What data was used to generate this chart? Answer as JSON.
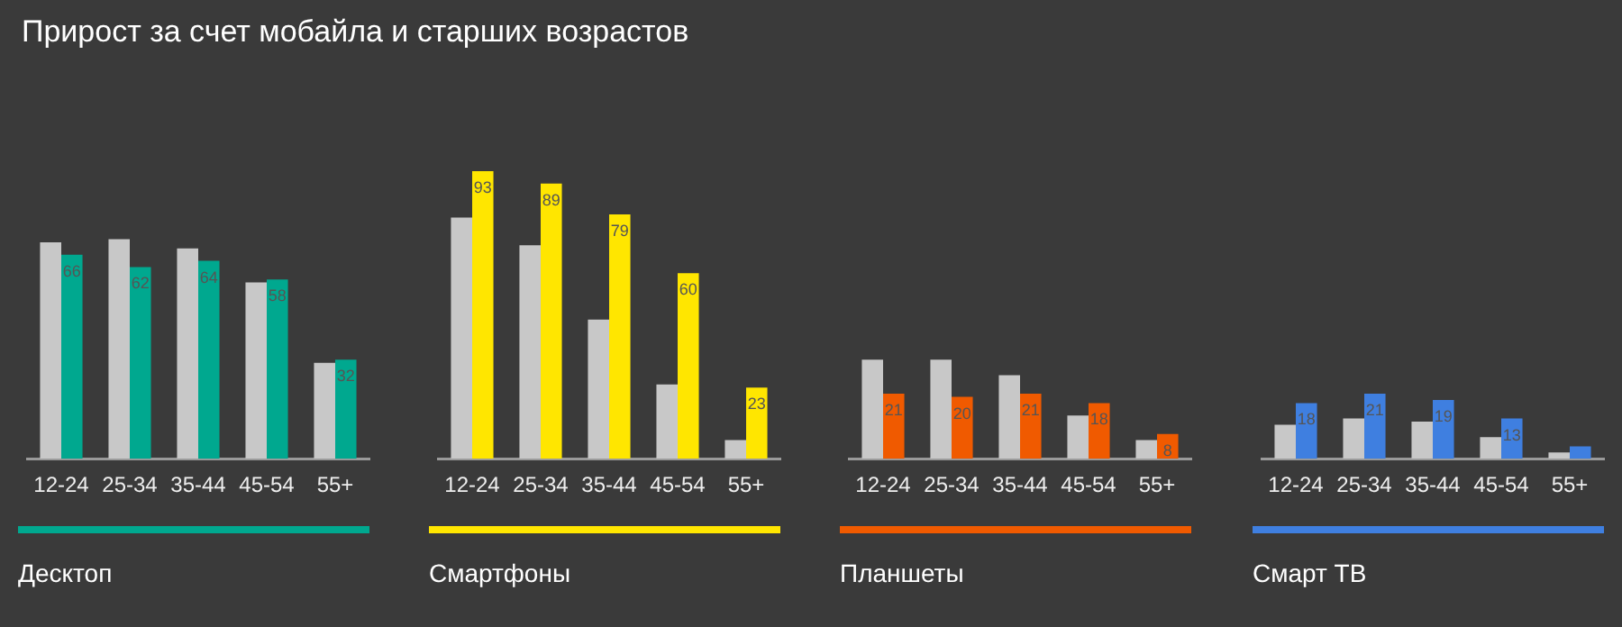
{
  "chart_data": [
    {
      "type": "bar",
      "title": "Прирост за счет мобайла и старших возрастов",
      "categories": [
        "12-24",
        "25-34",
        "35-44",
        "45-54",
        "55+"
      ],
      "legend": "bottom",
      "series": [
        {
          "color": "#c8c8c8",
          "values": [
            70,
            71,
            68,
            57,
            31
          ]
        },
        {
          "name": "Десктоп",
          "color": "#00a88f",
          "values": [
            66,
            62,
            64,
            58,
            32
          ],
          "value_labels": [
            "66",
            "62",
            "64",
            "58",
            "32"
          ]
        }
      ]
    },
    {
      "type": "bar",
      "categories": [
        "12-24",
        "25-34",
        "35-44",
        "45-54",
        "55+"
      ],
      "legend": "bottom",
      "series": [
        {
          "color": "#c8c8c8",
          "values": [
            78,
            69,
            45,
            24,
            6
          ]
        },
        {
          "name": "Смартфоны",
          "color": "#ffe600",
          "values": [
            93,
            89,
            79,
            60,
            23
          ],
          "value_labels": [
            "93",
            "89",
            "79",
            "60",
            "23"
          ]
        }
      ]
    },
    {
      "type": "bar",
      "categories": [
        "12-24",
        "25-34",
        "35-44",
        "45-54",
        "55+"
      ],
      "legend": "bottom",
      "series": [
        {
          "color": "#c8c8c8",
          "values": [
            32,
            32,
            27,
            14,
            6
          ]
        },
        {
          "name": "Планшеты",
          "color": "#f05a00",
          "values": [
            21,
            20,
            21,
            18,
            8
          ],
          "value_labels": [
            "21",
            "20",
            "21",
            "18",
            "8"
          ]
        }
      ]
    },
    {
      "type": "bar",
      "categories": [
        "12-24",
        "25-34",
        "35-44",
        "45-54",
        "55+"
      ],
      "legend": "bottom",
      "series": [
        {
          "color": "#c8c8c8",
          "values": [
            11,
            13,
            12,
            7,
            2
          ]
        },
        {
          "name": "Смарт ТВ",
          "color": "#3f7fe0",
          "values": [
            18,
            21,
            19,
            13,
            4
          ],
          "value_labels": [
            "18",
            "21",
            "19",
            "13",
            null
          ]
        }
      ]
    }
  ]
}
